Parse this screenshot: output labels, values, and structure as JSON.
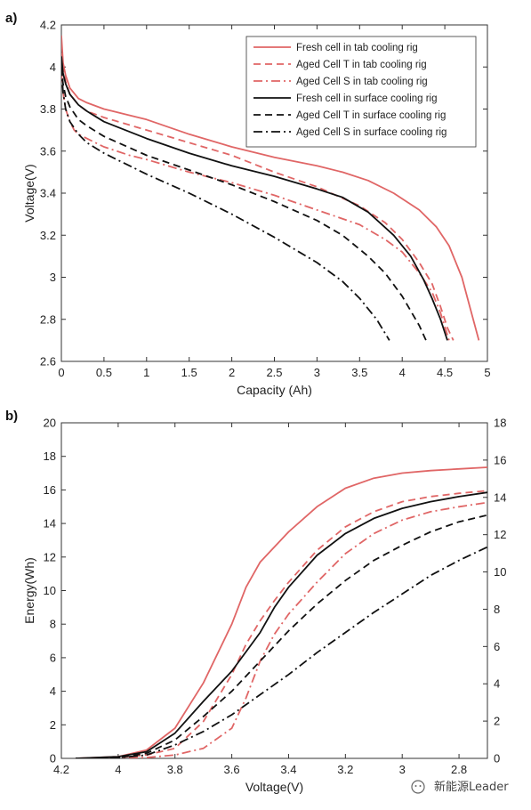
{
  "figure": {
    "watermark": "新能源Leader"
  },
  "chart_data": [
    {
      "panel_label": "a)",
      "type": "line",
      "xlabel": "Capacity (Ah)",
      "ylabel": "Voltage(V)",
      "xlim": [
        0,
        5
      ],
      "ylim": [
        2.6,
        4.2
      ],
      "xticks": [
        "0",
        "0.5",
        "1",
        "1.5",
        "2",
        "2.5",
        "3",
        "3.5",
        "4",
        "4.5",
        "5"
      ],
      "yticks": [
        "2.6",
        "2.8",
        "3",
        "3.2",
        "3.4",
        "3.6",
        "3.8",
        "4",
        "4.2"
      ],
      "grid": false,
      "legend_position": "top-right",
      "series": [
        {
          "name": "Fresh cell in tab cooling rig",
          "color": "#e06666",
          "dash": "solid",
          "x": [
            0,
            0.02,
            0.05,
            0.1,
            0.2,
            0.3,
            0.5,
            1.0,
            1.5,
            2.0,
            2.5,
            3.0,
            3.3,
            3.6,
            3.9,
            4.2,
            4.4,
            4.55,
            4.7,
            4.8,
            4.9
          ],
          "y": [
            4.15,
            4.02,
            3.96,
            3.9,
            3.85,
            3.83,
            3.8,
            3.75,
            3.68,
            3.62,
            3.57,
            3.53,
            3.5,
            3.46,
            3.4,
            3.32,
            3.24,
            3.15,
            3.0,
            2.85,
            2.7
          ]
        },
        {
          "name": "Aged Cell T in tab cooling rig",
          "color": "#e06666",
          "dash": "8,5",
          "x": [
            0,
            0.02,
            0.05,
            0.1,
            0.2,
            0.3,
            0.5,
            1.0,
            1.5,
            2.0,
            2.5,
            3.0,
            3.5,
            3.8,
            4.0,
            4.2,
            4.35,
            4.45,
            4.53,
            4.6
          ],
          "y": [
            4.12,
            4.0,
            3.93,
            3.87,
            3.82,
            3.79,
            3.76,
            3.7,
            3.64,
            3.58,
            3.5,
            3.43,
            3.34,
            3.26,
            3.18,
            3.07,
            2.97,
            2.86,
            2.76,
            2.7
          ]
        },
        {
          "name": "Aged Cell S in tab cooling rig",
          "color": "#e06666",
          "dash": "10,4,2,4",
          "x": [
            0,
            0.02,
            0.05,
            0.1,
            0.15,
            0.2,
            0.3,
            0.5,
            0.8,
            1.0,
            1.5,
            2.0,
            2.5,
            3.0,
            3.5,
            3.8,
            4.0,
            4.2,
            4.35,
            4.45,
            4.55
          ],
          "y": [
            3.97,
            3.88,
            3.8,
            3.74,
            3.7,
            3.68,
            3.66,
            3.62,
            3.58,
            3.56,
            3.5,
            3.45,
            3.39,
            3.32,
            3.25,
            3.18,
            3.12,
            3.02,
            2.93,
            2.83,
            2.7
          ]
        },
        {
          "name": "Fresh cell in surface cooling rig",
          "color": "#111111",
          "dash": "solid",
          "x": [
            0,
            0.02,
            0.05,
            0.1,
            0.2,
            0.3,
            0.5,
            1.0,
            1.5,
            2.0,
            2.5,
            3.0,
            3.3,
            3.6,
            3.9,
            4.1,
            4.25,
            4.35,
            4.45,
            4.53
          ],
          "y": [
            4.05,
            3.97,
            3.92,
            3.87,
            3.82,
            3.79,
            3.74,
            3.66,
            3.59,
            3.53,
            3.48,
            3.42,
            3.38,
            3.31,
            3.2,
            3.1,
            2.99,
            2.9,
            2.8,
            2.7
          ]
        },
        {
          "name": "Aged Cell T in surface cooling rig",
          "color": "#111111",
          "dash": "8,5",
          "x": [
            0,
            0.02,
            0.05,
            0.1,
            0.2,
            0.3,
            0.5,
            1.0,
            1.5,
            2.0,
            2.5,
            3.0,
            3.3,
            3.6,
            3.8,
            4.0,
            4.1,
            4.2,
            4.28
          ],
          "y": [
            4.0,
            3.92,
            3.86,
            3.81,
            3.75,
            3.72,
            3.67,
            3.58,
            3.51,
            3.44,
            3.36,
            3.27,
            3.2,
            3.1,
            3.02,
            2.91,
            2.84,
            2.77,
            2.7
          ]
        },
        {
          "name": "Aged Cell S in surface cooling rig",
          "color": "#111111",
          "dash": "10,4,2,4",
          "x": [
            0,
            0.02,
            0.05,
            0.1,
            0.2,
            0.3,
            0.5,
            1.0,
            1.5,
            2.0,
            2.5,
            3.0,
            3.3,
            3.5,
            3.7,
            3.85
          ],
          "y": [
            4.0,
            3.88,
            3.8,
            3.74,
            3.68,
            3.64,
            3.59,
            3.49,
            3.4,
            3.3,
            3.19,
            3.07,
            2.98,
            2.9,
            2.8,
            2.7
          ]
        }
      ]
    },
    {
      "panel_label": "b)",
      "type": "line",
      "xlabel": "Voltage(V)",
      "ylabel": "Energy(Wh)",
      "xlim": [
        4.2,
        2.7
      ],
      "x_reversed": true,
      "ylim": [
        0,
        20
      ],
      "y2lim": [
        0,
        18
      ],
      "xticks": [
        "4.2",
        "4",
        "3.8",
        "3.6",
        "3.4",
        "3.2",
        "3",
        "2.8"
      ],
      "yticks": [
        "0",
        "2",
        "4",
        "6",
        "8",
        "10",
        "12",
        "14",
        "16",
        "18",
        "20"
      ],
      "y2ticks": [
        "0",
        "2",
        "4",
        "6",
        "8",
        "10",
        "12",
        "14",
        "16",
        "18"
      ],
      "grid": false,
      "series": [
        {
          "name": "Fresh cell in tab cooling rig",
          "color": "#e06666",
          "dash": "solid",
          "x": [
            4.15,
            4.0,
            3.9,
            3.8,
            3.7,
            3.6,
            3.55,
            3.5,
            3.45,
            3.4,
            3.3,
            3.2,
            3.1,
            3.0,
            2.9,
            2.8,
            2.7
          ],
          "y": [
            0,
            0.1,
            0.5,
            1.8,
            4.5,
            8.0,
            10.2,
            11.7,
            12.6,
            13.5,
            15.0,
            16.1,
            16.7,
            17.0,
            17.15,
            17.25,
            17.35
          ]
        },
        {
          "name": "Aged Cell T in tab cooling rig",
          "color": "#e06666",
          "dash": "8,5",
          "x": [
            4.15,
            4.0,
            3.9,
            3.8,
            3.7,
            3.6,
            3.55,
            3.5,
            3.45,
            3.4,
            3.3,
            3.2,
            3.1,
            3.0,
            2.9,
            2.8,
            2.7
          ],
          "y": [
            0,
            0.05,
            0.2,
            0.6,
            2.2,
            5.0,
            6.8,
            8.2,
            9.4,
            10.5,
            12.4,
            13.8,
            14.7,
            15.3,
            15.6,
            15.8,
            15.95
          ]
        },
        {
          "name": "Aged Cell S in tab cooling rig",
          "color": "#e06666",
          "dash": "10,4,2,4",
          "x": [
            4.15,
            3.9,
            3.8,
            3.7,
            3.6,
            3.55,
            3.5,
            3.45,
            3.4,
            3.3,
            3.2,
            3.1,
            3.0,
            2.9,
            2.8,
            2.7
          ],
          "y": [
            0,
            0.05,
            0.2,
            0.6,
            1.8,
            3.6,
            5.8,
            7.4,
            8.6,
            10.5,
            12.2,
            13.4,
            14.2,
            14.7,
            15.0,
            15.25
          ]
        },
        {
          "name": "Fresh cell in surface cooling rig",
          "color": "#111111",
          "dash": "solid",
          "x": [
            4.15,
            4.0,
            3.9,
            3.8,
            3.7,
            3.6,
            3.5,
            3.45,
            3.4,
            3.3,
            3.2,
            3.1,
            3.0,
            2.9,
            2.8,
            2.7
          ],
          "y": [
            0,
            0.1,
            0.4,
            1.5,
            3.4,
            5.2,
            7.5,
            9.0,
            10.2,
            12.1,
            13.4,
            14.3,
            14.9,
            15.3,
            15.6,
            15.85
          ]
        },
        {
          "name": "Aged Cell T in surface cooling rig",
          "color": "#111111",
          "dash": "8,5",
          "x": [
            4.15,
            4.0,
            3.9,
            3.8,
            3.7,
            3.6,
            3.5,
            3.4,
            3.3,
            3.2,
            3.1,
            3.0,
            2.9,
            2.8,
            2.7
          ],
          "y": [
            0,
            0.05,
            0.3,
            1.1,
            2.5,
            4.0,
            5.8,
            7.6,
            9.2,
            10.6,
            11.8,
            12.7,
            13.5,
            14.1,
            14.5
          ]
        },
        {
          "name": "Aged Cell S in surface cooling rig",
          "color": "#111111",
          "dash": "10,4,2,4",
          "x": [
            4.15,
            4.0,
            3.9,
            3.8,
            3.7,
            3.6,
            3.5,
            3.4,
            3.3,
            3.2,
            3.1,
            3.0,
            2.9,
            2.8,
            2.7
          ],
          "y": [
            0,
            0.03,
            0.2,
            0.8,
            1.6,
            2.6,
            3.8,
            5.0,
            6.3,
            7.5,
            8.7,
            9.8,
            10.9,
            11.8,
            12.6
          ]
        }
      ]
    }
  ]
}
